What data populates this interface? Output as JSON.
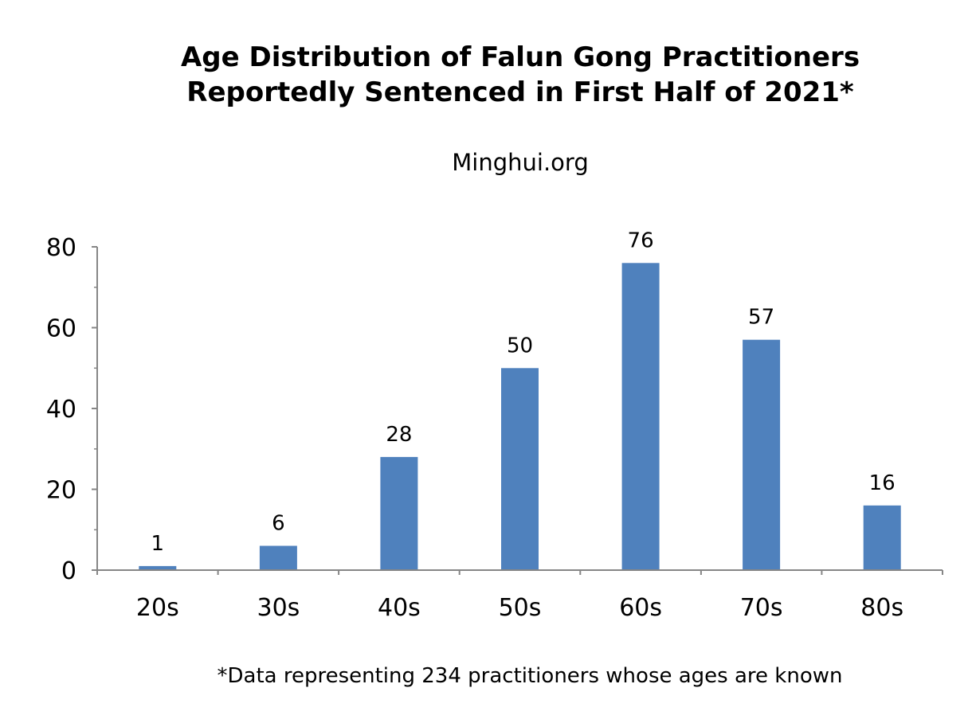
{
  "title_lines": [
    "Age Distribution of Falun Gong Practitioners",
    "Reportedly Sentenced in First Half of 2021*"
  ],
  "subtitle": "Minghui.org",
  "footnote": "*Data representing 234 practitioners whose ages are known",
  "colors": {
    "bar": "#4f81bd",
    "axis": "#868686"
  },
  "chart_data": {
    "type": "bar",
    "title": "Age Distribution of Falun Gong Practitioners Reportedly Sentenced in First Half of 2021*",
    "subtitle": "Minghui.org",
    "categories": [
      "20s",
      "30s",
      "40s",
      "50s",
      "60s",
      "70s",
      "80s"
    ],
    "values": [
      1,
      6,
      28,
      50,
      76,
      57,
      16
    ],
    "data_labels": [
      "1",
      "6",
      "28",
      "50",
      "76",
      "57",
      "16"
    ],
    "xlabel": "",
    "ylabel": "",
    "ylim": [
      0,
      80
    ],
    "yticks": [
      0,
      20,
      40,
      60,
      80
    ],
    "grid": false,
    "legend": "none"
  }
}
